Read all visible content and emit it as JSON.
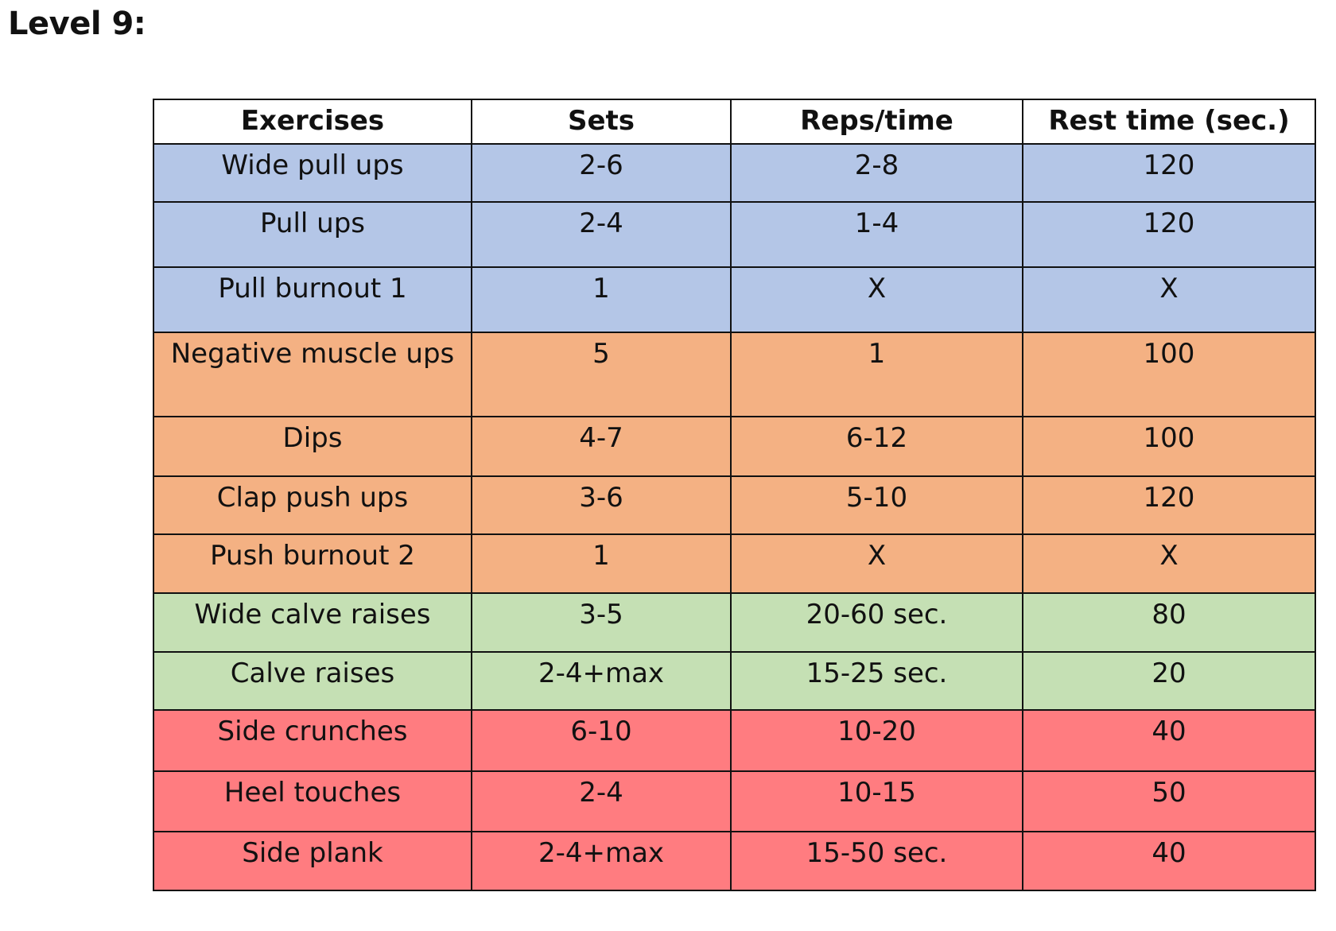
{
  "title": "Level 9:",
  "colors": {
    "blue": "#b4c6e7",
    "orange": "#f4b183",
    "green": "#c5e0b4",
    "red": "#ff7c80"
  },
  "table": {
    "headers": [
      "Exercises",
      "Sets",
      "Reps/time",
      "Rest time (sec.)"
    ],
    "rows": [
      {
        "group": "blue",
        "cells": [
          "Wide pull ups",
          "2-6",
          "2-8",
          "120"
        ]
      },
      {
        "group": "blue",
        "cells": [
          "Pull ups",
          "2-4",
          "1-4",
          "120"
        ]
      },
      {
        "group": "blue",
        "cells": [
          "Pull burnout 1",
          "1",
          "X",
          "X"
        ]
      },
      {
        "group": "orange",
        "cells": [
          "Negative muscle ups",
          "5",
          "1",
          "100"
        ]
      },
      {
        "group": "orange",
        "cells": [
          "Dips",
          "4-7",
          "6-12",
          "100"
        ]
      },
      {
        "group": "orange",
        "cells": [
          "Clap push ups",
          "3-6",
          "5-10",
          "120"
        ]
      },
      {
        "group": "orange",
        "cells": [
          "Push burnout 2",
          "1",
          "X",
          "X"
        ]
      },
      {
        "group": "green",
        "cells": [
          "Wide calve raises",
          "3-5",
          "20-60 sec.",
          "80"
        ]
      },
      {
        "group": "green",
        "cells": [
          "Calve raises",
          "2-4+max",
          "15-25 sec.",
          "20"
        ]
      },
      {
        "group": "red",
        "cells": [
          "Side crunches",
          "6-10",
          "10-20",
          "40"
        ]
      },
      {
        "group": "red",
        "cells": [
          "Heel touches",
          "2-4",
          "10-15",
          "50"
        ]
      },
      {
        "group": "red",
        "cells": [
          "Side plank",
          "2-4+max",
          "15-50 sec.",
          "40"
        ]
      }
    ]
  }
}
